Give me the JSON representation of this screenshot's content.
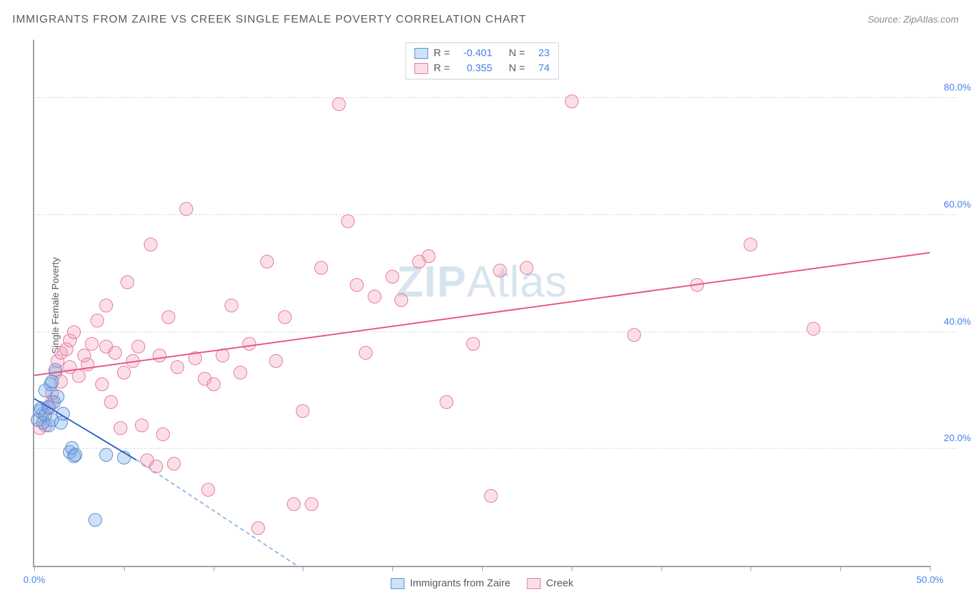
{
  "header": {
    "title": "IMMIGRANTS FROM ZAIRE VS CREEK SINGLE FEMALE POVERTY CORRELATION CHART",
    "source_prefix": "Source: ",
    "source_name": "ZipAtlas.com"
  },
  "watermark": {
    "bold": "ZIP",
    "rest": "Atlas"
  },
  "chart": {
    "type": "scatter",
    "ylabel": "Single Female Poverty",
    "xlim": [
      0,
      50
    ],
    "ylim": [
      0,
      90
    ],
    "xtick_positions": [
      0,
      5,
      10,
      15,
      20,
      25,
      30,
      35,
      40,
      45,
      50
    ],
    "xtick_labels": {
      "0": "0.0%",
      "50": "50.0%"
    },
    "ytick_positions": [
      20,
      40,
      60,
      80
    ],
    "ytick_labels": {
      "20": "20.0%",
      "40": "40.0%",
      "60": "60.0%",
      "80": "80.0%"
    },
    "grid_color": "#d7dde2",
    "axis_color": "#9aa0a6",
    "background_color": "#ffffff",
    "label_color": "#4a80e8",
    "marker_radius": 10,
    "marker_border_width": 1.5,
    "series": {
      "zaire": {
        "label": "Immigrants from Zaire",
        "fill": "rgba(118,168,228,0.35)",
        "stroke": "#5a8dd6",
        "R": "-0.401",
        "N": "23",
        "trend": {
          "x1": 0,
          "y1": 28.5,
          "x2": 5.7,
          "y2": 18.0,
          "color": "#2f63c9",
          "width": 2
        },
        "trend_ext": {
          "x1": 5.7,
          "y1": 18.0,
          "x2": 14.6,
          "y2": 0.0,
          "color": "#9bb8e5"
        },
        "points": [
          [
            0.2,
            25.0
          ],
          [
            0.3,
            26.5
          ],
          [
            0.4,
            27.0
          ],
          [
            0.5,
            24.5
          ],
          [
            0.6,
            25.8
          ],
          [
            0.6,
            30.0
          ],
          [
            0.8,
            27.2
          ],
          [
            0.8,
            24.0
          ],
          [
            0.9,
            31.0
          ],
          [
            1.0,
            31.5
          ],
          [
            1.0,
            25.0
          ],
          [
            1.1,
            28.0
          ],
          [
            1.2,
            33.5
          ],
          [
            1.3,
            29.0
          ],
          [
            1.5,
            24.5
          ],
          [
            1.6,
            26.0
          ],
          [
            2.0,
            19.5
          ],
          [
            2.1,
            20.2
          ],
          [
            2.2,
            18.8
          ],
          [
            2.3,
            19.0
          ],
          [
            3.4,
            7.8
          ],
          [
            4.0,
            19.0
          ],
          [
            5.0,
            18.5
          ]
        ]
      },
      "creek": {
        "label": "Creek",
        "fill": "rgba(242,150,175,0.30)",
        "stroke": "#e77a9c",
        "R": "0.355",
        "N": "74",
        "trend": {
          "x1": 0,
          "y1": 32.5,
          "x2": 50,
          "y2": 53.5,
          "color": "#e9557f",
          "width": 2
        },
        "points": [
          [
            0.3,
            23.5
          ],
          [
            0.5,
            26.0
          ],
          [
            0.6,
            24.0
          ],
          [
            0.8,
            27.0
          ],
          [
            1.0,
            28.0
          ],
          [
            1.0,
            29.5
          ],
          [
            1.2,
            33.0
          ],
          [
            1.3,
            35.0
          ],
          [
            1.5,
            31.5
          ],
          [
            1.5,
            36.5
          ],
          [
            1.8,
            37.0
          ],
          [
            2.0,
            34.0
          ],
          [
            2.0,
            38.5
          ],
          [
            2.2,
            40.0
          ],
          [
            2.5,
            32.5
          ],
          [
            2.8,
            36.0
          ],
          [
            3.0,
            34.5
          ],
          [
            3.2,
            38.0
          ],
          [
            3.5,
            42.0
          ],
          [
            3.8,
            31.0
          ],
          [
            4.0,
            44.5
          ],
          [
            4.0,
            37.5
          ],
          [
            4.3,
            28.0
          ],
          [
            4.5,
            36.5
          ],
          [
            5.0,
            33.0
          ],
          [
            5.2,
            48.5
          ],
          [
            5.5,
            35.0
          ],
          [
            5.8,
            37.5
          ],
          [
            6.0,
            24.0
          ],
          [
            6.3,
            18.0
          ],
          [
            6.5,
            55.0
          ],
          [
            7.0,
            36.0
          ],
          [
            7.2,
            22.5
          ],
          [
            7.5,
            42.5
          ],
          [
            7.8,
            17.5
          ],
          [
            8.0,
            34.0
          ],
          [
            8.5,
            61.0
          ],
          [
            9.0,
            35.5
          ],
          [
            9.5,
            32.0
          ],
          [
            9.7,
            13.0
          ],
          [
            10.0,
            31.0
          ],
          [
            10.5,
            36.0
          ],
          [
            11.0,
            44.5
          ],
          [
            11.5,
            33.0
          ],
          [
            12.0,
            38.0
          ],
          [
            12.5,
            6.5
          ],
          [
            13.0,
            52.0
          ],
          [
            13.5,
            35.0
          ],
          [
            14.0,
            42.5
          ],
          [
            14.5,
            10.5
          ],
          [
            15.0,
            26.5
          ],
          [
            15.5,
            10.5
          ],
          [
            16.0,
            51.0
          ],
          [
            17.0,
            79.0
          ],
          [
            17.5,
            59.0
          ],
          [
            18.0,
            48.0
          ],
          [
            18.5,
            36.5
          ],
          [
            19.0,
            46.0
          ],
          [
            20.0,
            49.5
          ],
          [
            20.5,
            45.5
          ],
          [
            21.5,
            52.0
          ],
          [
            22.0,
            53.0
          ],
          [
            23.0,
            28.0
          ],
          [
            24.5,
            38.0
          ],
          [
            25.5,
            12.0
          ],
          [
            26.0,
            50.5
          ],
          [
            27.5,
            51.0
          ],
          [
            30.0,
            79.5
          ],
          [
            33.5,
            39.5
          ],
          [
            37.0,
            48.0
          ],
          [
            40.0,
            55.0
          ],
          [
            43.5,
            40.5
          ],
          [
            4.8,
            23.5
          ],
          [
            6.8,
            17.0
          ]
        ]
      }
    },
    "legend_top": {
      "R_label": "R =",
      "N_label": "N ="
    }
  }
}
